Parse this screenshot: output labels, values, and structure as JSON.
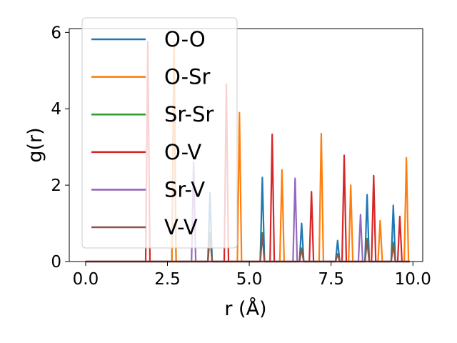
{
  "chart_data": {
    "type": "line",
    "xlabel": "r (Å)",
    "ylabel": "g(r)",
    "xlim": [
      -0.5,
      10.3
    ],
    "ylim": [
      0,
      6.1
    ],
    "xticks": [
      "0.0",
      "2.5",
      "5.0",
      "7.5",
      "10.0"
    ],
    "yticks": [
      "0",
      "2",
      "4",
      "6"
    ],
    "grid": false,
    "legend_position": "top-left",
    "series": [
      {
        "name": "O-O",
        "color": "#1f77b4",
        "peaks": [
          [
            2.7,
            5.6
          ],
          [
            3.8,
            1.8
          ],
          [
            5.4,
            2.2
          ],
          [
            6.6,
            1.0
          ],
          [
            7.7,
            0.55
          ],
          [
            8.6,
            1.75
          ],
          [
            9.4,
            1.47
          ]
        ]
      },
      {
        "name": "O-Sr",
        "color": "#ff7f0e",
        "peaks": [
          [
            2.7,
            5.75
          ],
          [
            4.7,
            3.9
          ],
          [
            6.0,
            2.4
          ],
          [
            7.2,
            3.35
          ],
          [
            8.1,
            2.0
          ],
          [
            9.0,
            1.07
          ],
          [
            9.8,
            2.72
          ]
        ]
      },
      {
        "name": "Sr-Sr",
        "color": "#2ca02c",
        "peaks": [
          [
            3.8,
            0.75
          ],
          [
            5.4,
            0.75
          ],
          [
            6.6,
            0.35
          ],
          [
            7.7,
            0.2
          ],
          [
            8.6,
            0.6
          ],
          [
            9.4,
            0.5
          ]
        ]
      },
      {
        "name": "O-V",
        "color": "#d62728",
        "peaks": [
          [
            1.9,
            5.75
          ],
          [
            4.3,
            4.65
          ],
          [
            5.7,
            3.33
          ],
          [
            6.9,
            1.83
          ],
          [
            7.9,
            2.78
          ],
          [
            8.8,
            2.25
          ],
          [
            9.6,
            1.18
          ]
        ]
      },
      {
        "name": "Sr-V",
        "color": "#9467bd",
        "peaks": [
          [
            3.3,
            2.6
          ],
          [
            6.4,
            2.18
          ],
          [
            8.4,
            1.23
          ]
        ]
      },
      {
        "name": "V-V",
        "color": "#8c564b",
        "peaks": [
          [
            3.8,
            0.7
          ],
          [
            5.4,
            0.7
          ],
          [
            6.6,
            0.33
          ],
          [
            7.7,
            0.2
          ],
          [
            8.6,
            0.55
          ],
          [
            9.4,
            0.45
          ]
        ]
      }
    ]
  }
}
